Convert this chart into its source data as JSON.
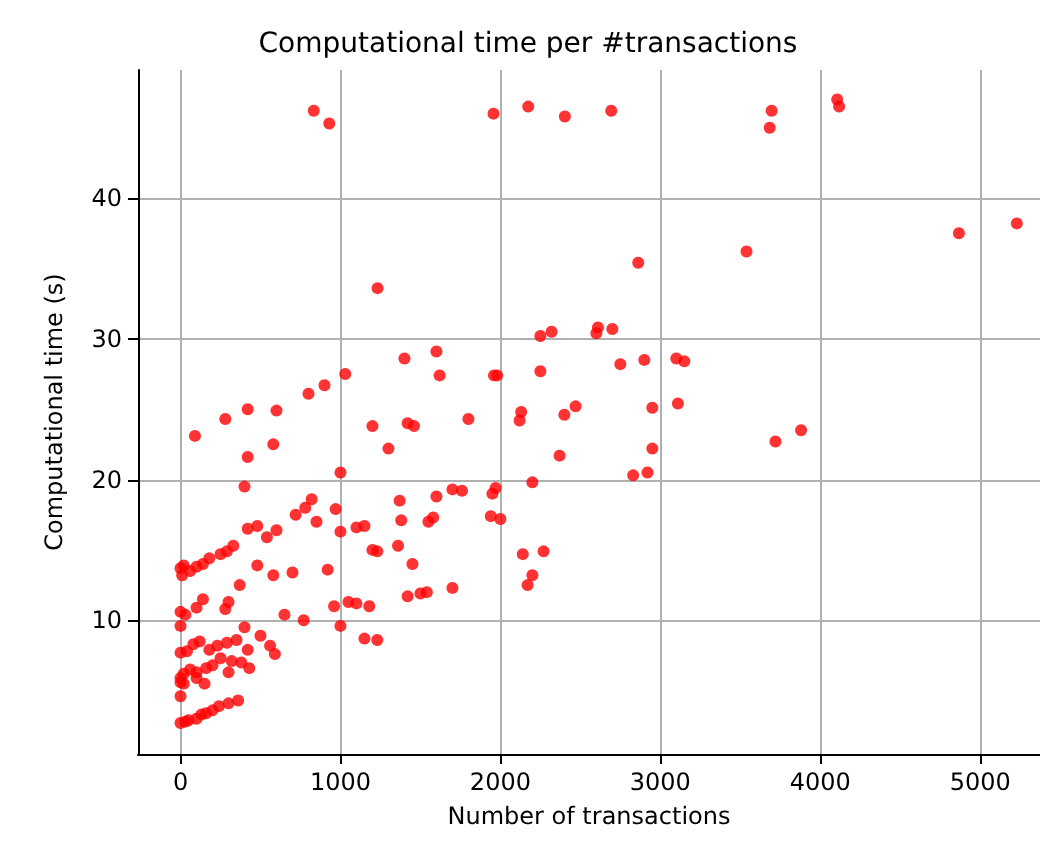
{
  "chart_data": {
    "type": "scatter",
    "title": "Computational time per #transactions",
    "xlabel": "Number of transactions",
    "ylabel": "Computational time (s)",
    "xlim": [
      -266,
      5374
    ],
    "ylim": [
      0.5,
      49.1
    ],
    "xticks": [
      0,
      1000,
      2000,
      3000,
      4000,
      5000
    ],
    "yticks": [
      10,
      20,
      30,
      40
    ],
    "grid": true,
    "marker": "circle",
    "series": [
      {
        "color": "#ff0000",
        "x": [
          833,
          930,
          1957,
          2174,
          2403,
          2693,
          3696,
          3684,
          4106,
          4118,
          1232,
          2862,
          3539,
          4867,
          5229,
          2700,
          2610,
          2600,
          2320,
          2250,
          3100,
          3150,
          2900,
          2750,
          2250,
          1400,
          1600,
          1620,
          1960,
          1980,
          1030,
          900,
          800,
          420,
          600,
          280,
          90,
          1200,
          1300,
          1460,
          1420,
          1800,
          2120,
          2130,
          2470,
          2400,
          2830,
          2920,
          2950,
          2370,
          3110,
          2950,
          3720,
          3880,
          2200,
          1970,
          1950,
          1940,
          2000,
          1700,
          1760,
          1600,
          1580,
          1550,
          1370,
          1380,
          1360,
          1450,
          1500,
          1420,
          1540,
          1700,
          2140,
          2270,
          2200,
          2170,
          1230,
          1200,
          1100,
          1150,
          1000,
          850,
          780,
          820,
          720,
          600,
          540,
          480,
          420,
          330,
          290,
          250,
          180,
          140,
          100,
          60,
          20,
          10,
          0,
          1000,
          970,
          400,
          420,
          580,
          1050,
          1100,
          1180,
          1150,
          1230,
          960,
          920,
          700,
          580,
          480,
          370,
          300,
          280,
          140,
          100,
          30,
          0,
          0,
          1000,
          770,
          650,
          400,
          290,
          230,
          180,
          120,
          80,
          40,
          0,
          560,
          590,
          420,
          350,
          500,
          200,
          160,
          100,
          60,
          20,
          0,
          0,
          20,
          100,
          0,
          430,
          380,
          320,
          250,
          150,
          300,
          100,
          160,
          200,
          240,
          300,
          360,
          50,
          0,
          30,
          130
        ],
        "values": [
          46.2,
          45.3,
          46.0,
          46.5,
          45.8,
          46.2,
          46.2,
          45.0,
          47.0,
          46.5,
          33.6,
          35.4,
          36.2,
          37.5,
          38.2,
          30.7,
          30.8,
          30.4,
          30.5,
          30.2,
          28.6,
          28.4,
          28.5,
          28.2,
          27.7,
          28.6,
          29.1,
          27.4,
          27.4,
          27.4,
          27.5,
          26.7,
          26.1,
          25.0,
          24.9,
          24.3,
          23.1,
          23.8,
          22.2,
          23.8,
          24.0,
          24.3,
          24.2,
          24.8,
          25.2,
          24.6,
          20.3,
          20.5,
          22.2,
          21.7,
          25.4,
          25.1,
          22.7,
          23.5,
          19.8,
          19.4,
          19.0,
          17.4,
          17.2,
          19.3,
          19.2,
          18.8,
          17.3,
          17.0,
          18.5,
          17.1,
          15.3,
          14.0,
          11.9,
          11.7,
          12.0,
          12.3,
          14.7,
          14.9,
          13.2,
          12.5,
          14.9,
          15.0,
          16.6,
          16.7,
          16.3,
          17.0,
          18.0,
          18.6,
          17.5,
          16.4,
          15.9,
          16.7,
          16.5,
          15.3,
          14.9,
          14.7,
          14.4,
          14.0,
          13.8,
          13.5,
          13.9,
          13.2,
          13.7,
          20.5,
          17.9,
          19.5,
          21.6,
          22.5,
          11.3,
          11.2,
          11.0,
          8.7,
          8.6,
          11.0,
          13.6,
          13.4,
          13.2,
          13.9,
          12.5,
          11.3,
          10.8,
          11.5,
          10.9,
          10.4,
          10.6,
          9.6,
          9.6,
          10.0,
          10.4,
          9.5,
          8.4,
          8.2,
          7.9,
          8.5,
          8.3,
          7.8,
          7.7,
          8.2,
          7.6,
          7.9,
          8.6,
          8.9,
          6.8,
          6.6,
          6.3,
          6.5,
          6.2,
          5.9,
          5.6,
          5.5,
          5.9,
          4.6,
          6.6,
          7.0,
          7.1,
          7.3,
          5.5,
          6.3,
          3.0,
          3.4,
          3.6,
          3.9,
          4.1,
          4.3,
          2.9,
          2.7,
          2.8,
          3.3
        ]
      }
    ]
  }
}
